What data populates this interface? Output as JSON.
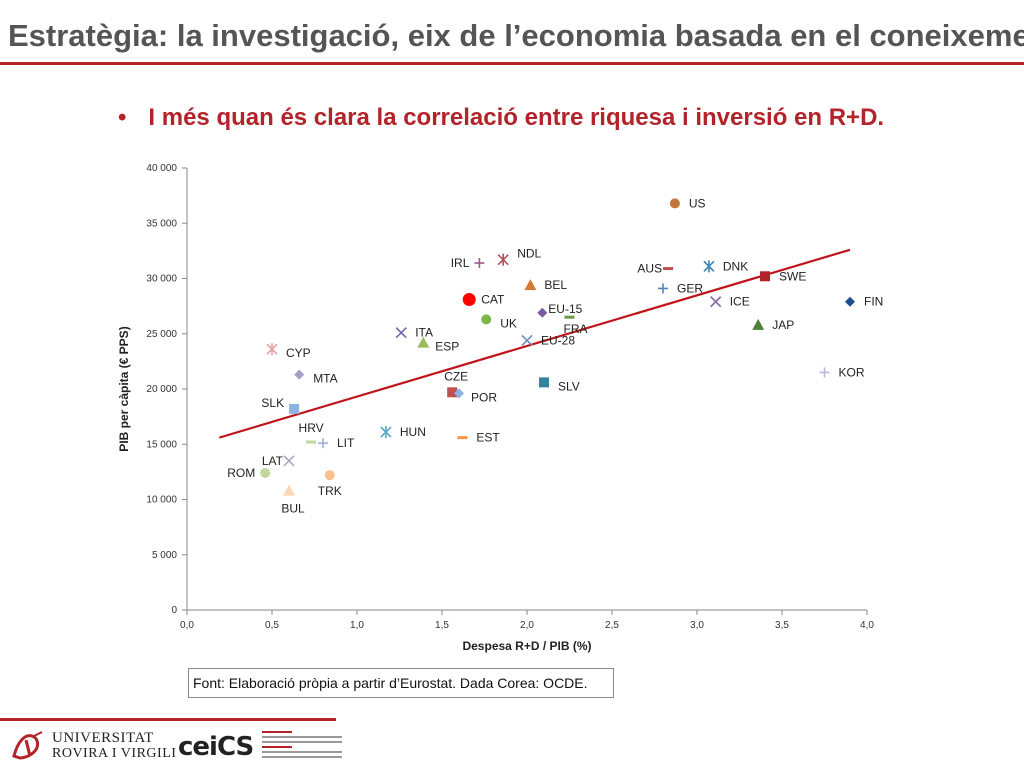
{
  "slide": {
    "title": "Estratègia: la investigació, eix de l’economia basada en el coneixement",
    "bullet": "•",
    "subtitle": "I més quan és clara la correlació entre riquesa i inversió en R+D.",
    "source": "Font: Elaboració pròpia a partir d’Eurostat. Dada Corea: OCDE."
  },
  "logos": {
    "urv_line1": "UNIVERSITAT",
    "urv_line2": "ROVIRA I VIRGILI",
    "cei_text": "ceiCS"
  },
  "colors": {
    "accent": "#b3232a",
    "trendline": "#c0141b",
    "grey_title": "#555555"
  },
  "chart_data": {
    "type": "scatter",
    "title": "",
    "xlabel": "Despesa R+D / PIB (%)",
    "ylabel": "PIB per càpita (€ PPS)",
    "xlim": [
      0,
      4
    ],
    "ylim": [
      0,
      40000
    ],
    "x_ticks": [
      "0,0",
      "0,5",
      "1,0",
      "1,5",
      "2,0",
      "2,5",
      "3,0",
      "3,5",
      "4,0"
    ],
    "y_ticks": [
      "0",
      "5 000",
      "10 000",
      "15 000",
      "20 000",
      "25 000",
      "30 000",
      "35 000",
      "40 000"
    ],
    "grid": false,
    "legend": "none",
    "trendline": {
      "x": [
        0.19,
        3.9
      ],
      "y": [
        15600,
        32600
      ],
      "color": "#c0141b"
    },
    "points": [
      {
        "label": "US",
        "x": 2.87,
        "y": 36800,
        "marker": "circle",
        "color": "#c0773a"
      },
      {
        "label": "IRL",
        "x": 1.72,
        "y": 31400,
        "marker": "plus",
        "color": "#a05a8c"
      },
      {
        "label": "NDL",
        "x": 1.86,
        "y": 31700,
        "marker": "asterisk",
        "color": "#b4505a"
      },
      {
        "label": "BEL",
        "x": 2.02,
        "y": 29400,
        "marker": "triangle",
        "color": "#d87a32"
      },
      {
        "label": "CAT",
        "x": 1.66,
        "y": 28100,
        "marker": "circle",
        "color": "#ff0000"
      },
      {
        "label": "EU-15",
        "x": 2.09,
        "y": 26900,
        "marker": "diamond",
        "color": "#7c5ba6"
      },
      {
        "label": "UK",
        "x": 1.76,
        "y": 26300,
        "marker": "circle",
        "color": "#7ab648"
      },
      {
        "label": "FRA",
        "x": 2.25,
        "y": 26500,
        "marker": "dash",
        "color": "#6f9a4a"
      },
      {
        "label": "AUS",
        "x": 2.83,
        "y": 30900,
        "marker": "dash",
        "color": "#c0504d"
      },
      {
        "label": "DNK",
        "x": 3.07,
        "y": 31100,
        "marker": "asterisk",
        "color": "#3b84b8"
      },
      {
        "label": "SWE",
        "x": 3.4,
        "y": 30200,
        "marker": "square",
        "color": "#b3232a"
      },
      {
        "label": "GER",
        "x": 2.8,
        "y": 29100,
        "marker": "plus",
        "color": "#4f81bd"
      },
      {
        "label": "ICE",
        "x": 3.11,
        "y": 27900,
        "marker": "cross",
        "color": "#8064a2"
      },
      {
        "label": "FIN",
        "x": 3.9,
        "y": 27900,
        "marker": "diamond",
        "color": "#1f4e8c"
      },
      {
        "label": "JAP",
        "x": 3.36,
        "y": 25800,
        "marker": "triangle",
        "color": "#4f7f3a"
      },
      {
        "label": "ITA",
        "x": 1.26,
        "y": 25100,
        "marker": "cross",
        "color": "#6c6ca8"
      },
      {
        "label": "ESP",
        "x": 1.39,
        "y": 24200,
        "marker": "triangle",
        "color": "#9bbb59"
      },
      {
        "label": "EU-28",
        "x": 2.0,
        "y": 24400,
        "marker": "cross",
        "color": "#6c8ebf"
      },
      {
        "label": "CYP",
        "x": 0.5,
        "y": 23600,
        "marker": "asterisk",
        "color": "#e6a0a0"
      },
      {
        "label": "MTA",
        "x": 0.66,
        "y": 21300,
        "marker": "diamond",
        "color": "#a89cc8"
      },
      {
        "label": "KOR",
        "x": 3.75,
        "y": 21500,
        "marker": "plus",
        "color": "#b8b8d8"
      },
      {
        "label": "SLV",
        "x": 2.1,
        "y": 20600,
        "marker": "square",
        "color": "#31859c"
      },
      {
        "label": "CZE",
        "x": 1.56,
        "y": 19700,
        "marker": "square",
        "color": "#c0504d"
      },
      {
        "label": "POR",
        "x": 1.6,
        "y": 19600,
        "marker": "diamond",
        "color": "#8db3e2"
      },
      {
        "label": "SLK",
        "x": 0.63,
        "y": 18200,
        "marker": "square",
        "color": "#8db3e2"
      },
      {
        "label": "HUN",
        "x": 1.17,
        "y": 16100,
        "marker": "asterisk",
        "color": "#4bacc6"
      },
      {
        "label": "EST",
        "x": 1.62,
        "y": 15600,
        "marker": "dash",
        "color": "#f79646"
      },
      {
        "label": "HRV",
        "x": 0.73,
        "y": 15200,
        "marker": "dash",
        "color": "#c3d69b"
      },
      {
        "label": "LIT",
        "x": 0.8,
        "y": 15100,
        "marker": "plus",
        "color": "#95b3d7"
      },
      {
        "label": "LAT",
        "x": 0.6,
        "y": 13500,
        "marker": "cross",
        "color": "#b2a1c7"
      },
      {
        "label": "ROM",
        "x": 0.46,
        "y": 12400,
        "marker": "circle",
        "color": "#c4d79b"
      },
      {
        "label": "TRK",
        "x": 0.84,
        "y": 12200,
        "marker": "circle",
        "color": "#fabf8f"
      },
      {
        "label": "BUL",
        "x": 0.6,
        "y": 10800,
        "marker": "triangle",
        "color": "#fcd5b4"
      }
    ]
  }
}
